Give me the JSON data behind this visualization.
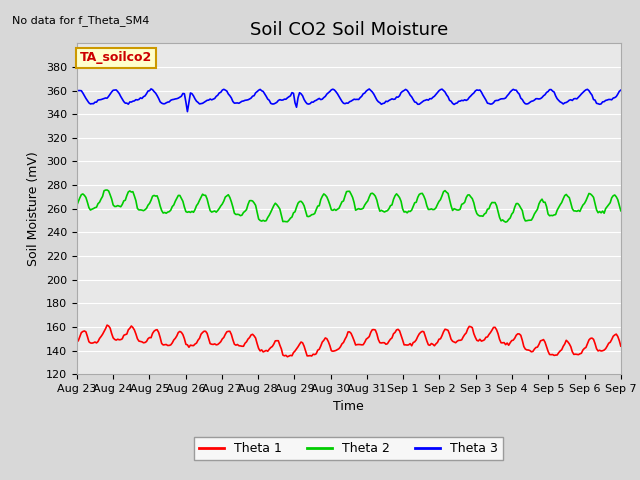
{
  "title": "Soil CO2 Soil Moisture",
  "ylabel": "Soil Moisture (mV)",
  "xlabel": "Time",
  "no_data_text": "No data for f_Theta_SM4",
  "annotation_text": "TA_soilco2",
  "annotation_color": "#cc0000",
  "annotation_bg": "#ffffcc",
  "annotation_border": "#cc9900",
  "ylim": [
    120,
    400
  ],
  "yticks": [
    120,
    140,
    160,
    180,
    200,
    220,
    240,
    260,
    280,
    300,
    320,
    340,
    360,
    380
  ],
  "background_color": "#d8d8d8",
  "plot_bg": "#e8e8e8",
  "grid_color": "#ffffff",
  "xtick_labels": [
    "Aug 23",
    "Aug 24",
    "Aug 25",
    "Aug 26",
    "Aug 27",
    "Aug 28",
    "Aug 29",
    "Aug 30",
    "Aug 31",
    "Sep 1",
    "Sep 2",
    "Sep 3",
    "Sep 4",
    "Sep 5",
    "Sep 6",
    "Sep 7"
  ],
  "n_days": 15,
  "legend_labels": [
    "Theta 1",
    "Theta 2",
    "Theta 3"
  ],
  "legend_colors": [
    "#ff0000",
    "#00cc00",
    "#0000ff"
  ],
  "title_fontsize": 13,
  "label_fontsize": 9,
  "tick_fontsize": 8
}
